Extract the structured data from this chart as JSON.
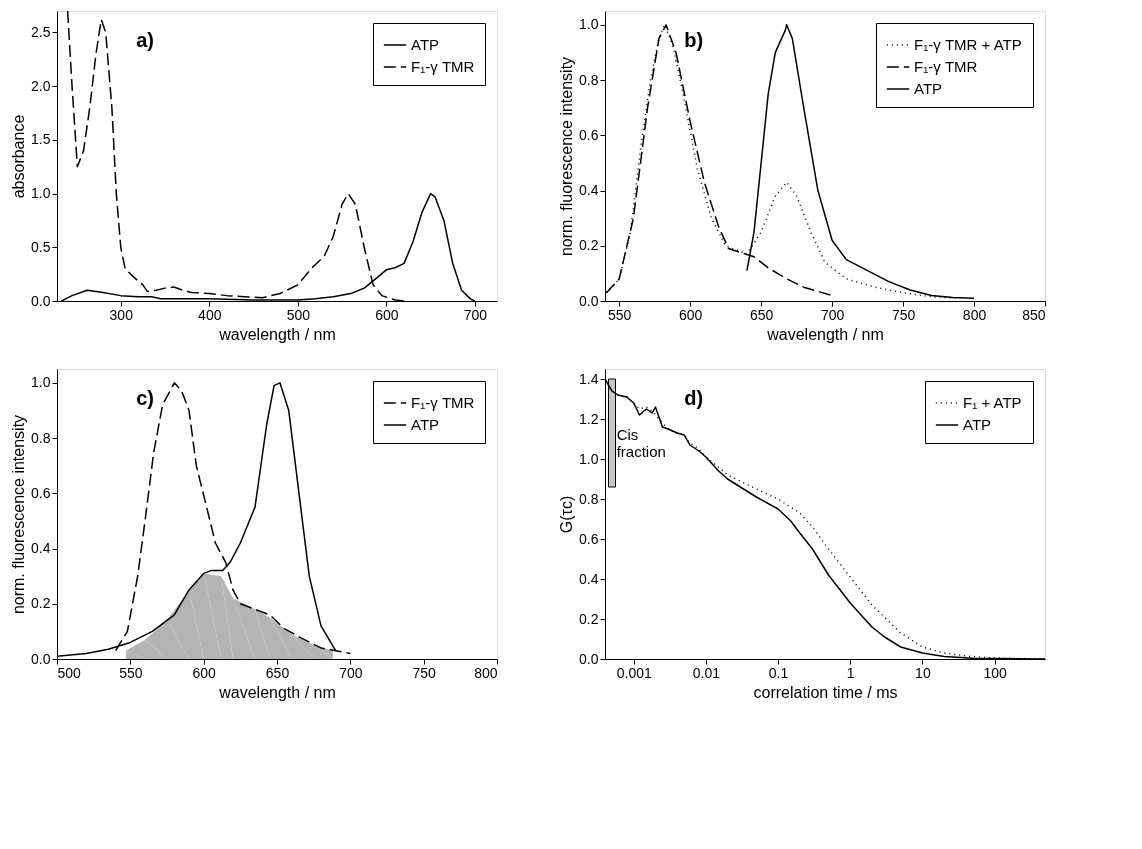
{
  "chart_data": [
    {
      "type": "line",
      "annotations": [
        "a)"
      ],
      "xlabel": "wavelength / nm",
      "ylabel": "absorbance",
      "xlim": [
        228,
        725
      ],
      "ylim": [
        0,
        2.7
      ],
      "xticks": [
        300,
        400,
        500,
        600,
        700
      ],
      "yticks": [
        {
          "value": 0,
          "label": "0.0"
        },
        {
          "value": 0.5,
          "label": "0.5"
        },
        {
          "value": 1,
          "label": "1.0"
        },
        {
          "value": 1.5,
          "label": "1.5"
        },
        {
          "value": 2,
          "label": "2.0"
        },
        {
          "value": 2.5,
          "label": "2.5"
        }
      ],
      "legend": "top right",
      "series": [
        {
          "name": "ATP",
          "color": "#000000",
          "line_style": "solid",
          "x": [
            233,
            245,
            262,
            280,
            300,
            320,
            335,
            345,
            400,
            450,
            500,
            520,
            540,
            560,
            575,
            590,
            600,
            610,
            620,
            630,
            640,
            650,
            655,
            665,
            675,
            685,
            695,
            700
          ],
          "values": [
            0,
            0.05,
            0.1,
            0.08,
            0.05,
            0.04,
            0.04,
            0.02,
            0.02,
            0.01,
            0.01,
            0.02,
            0.04,
            0.07,
            0.12,
            0.22,
            0.29,
            0.31,
            0.35,
            0.55,
            0.82,
            1.0,
            0.97,
            0.75,
            0.35,
            0.1,
            0.02,
            0
          ]
        },
        {
          "name": "F₁-γ TMR",
          "color": "#000000",
          "line_style": "dashed",
          "x": [
            240,
            245,
            251,
            258,
            265,
            272,
            278,
            283,
            290,
            295,
            300,
            305,
            315,
            325,
            330,
            340,
            350,
            360,
            370,
            380,
            400,
            420,
            440,
            460,
            480,
            500,
            515,
            530,
            540,
            550,
            557,
            565,
            575,
            585,
            595,
            610,
            620
          ],
          "values": [
            2.7,
            2.0,
            1.25,
            1.4,
            1.8,
            2.3,
            2.62,
            2.5,
            1.8,
            1.0,
            0.5,
            0.3,
            0.22,
            0.15,
            0.09,
            0.1,
            0.12,
            0.13,
            0.1,
            0.08,
            0.07,
            0.05,
            0.04,
            0.03,
            0.07,
            0.15,
            0.3,
            0.42,
            0.6,
            0.9,
            1.0,
            0.9,
            0.5,
            0.15,
            0.05,
            0.01,
            0
          ]
        }
      ]
    },
    {
      "type": "line",
      "annotations": [
        "b)"
      ],
      "xlabel": "wavelength / nm",
      "ylabel": "norm. fluorescence intensity",
      "xlim": [
        540,
        850
      ],
      "ylim": [
        0,
        1.05
      ],
      "xticks": [
        550,
        600,
        650,
        700,
        750,
        800,
        850
      ],
      "yticks": [
        {
          "value": 0,
          "label": "0.0"
        },
        {
          "value": 0.2,
          "label": "0.2"
        },
        {
          "value": 0.4,
          "label": "0.4"
        },
        {
          "value": 0.6,
          "label": "0.6"
        },
        {
          "value": 0.8,
          "label": "0.8"
        },
        {
          "value": 1,
          "label": "1.0"
        }
      ],
      "legend": "top right",
      "series": [
        {
          "name": "F₁-γ TMR + ATP",
          "color": "#000000",
          "line_style": "dotted",
          "x": [
            541,
            550,
            558,
            565,
            572,
            578,
            582,
            588,
            595,
            605,
            615,
            625,
            640,
            650,
            660,
            668,
            675,
            685,
            695,
            710,
            730,
            750,
            770,
            790
          ],
          "values": [
            0.03,
            0.08,
            0.25,
            0.55,
            0.8,
            0.95,
            1.0,
            0.92,
            0.75,
            0.48,
            0.3,
            0.2,
            0.17,
            0.25,
            0.38,
            0.43,
            0.38,
            0.25,
            0.14,
            0.08,
            0.05,
            0.03,
            0.015,
            0.01
          ]
        },
        {
          "name": "F₁-γ TMR",
          "color": "#000000",
          "line_style": "dashed",
          "x": [
            541,
            550,
            560,
            570,
            578,
            583,
            590,
            600,
            610,
            620,
            627,
            645,
            655,
            668,
            680,
            700
          ],
          "values": [
            0.03,
            0.08,
            0.3,
            0.7,
            0.95,
            1.0,
            0.9,
            0.65,
            0.43,
            0.27,
            0.19,
            0.16,
            0.12,
            0.08,
            0.05,
            0.02
          ]
        },
        {
          "name": "ATP",
          "color": "#000000",
          "line_style": "solid",
          "x": [
            640,
            645,
            650,
            655,
            660,
            667,
            668,
            672,
            680,
            690,
            700,
            710,
            725,
            740,
            755,
            770,
            785,
            800
          ],
          "values": [
            0.11,
            0.25,
            0.5,
            0.75,
            0.9,
            0.98,
            1.0,
            0.95,
            0.7,
            0.4,
            0.22,
            0.15,
            0.11,
            0.07,
            0.04,
            0.02,
            0.013,
            0.01
          ]
        }
      ]
    },
    {
      "type": "line",
      "annotations": [
        "c)"
      ],
      "xlabel": "wavelength / nm",
      "ylabel": "norm. fluorescence intensity",
      "xlim": [
        500,
        800
      ],
      "ylim": [
        0,
        1.05
      ],
      "xticks": [
        500,
        550,
        600,
        650,
        700,
        750,
        800
      ],
      "yticks": [
        {
          "value": 0,
          "label": "0.0"
        },
        {
          "value": 0.2,
          "label": "0.2"
        },
        {
          "value": 0.4,
          "label": "0.4"
        },
        {
          "value": 0.6,
          "label": "0.6"
        },
        {
          "value": 0.8,
          "label": "0.8"
        },
        {
          "value": 1,
          "label": "1.0"
        }
      ],
      "legend": "top right",
      "series": [
        {
          "type": "area",
          "color": "#b4b4b4",
          "x": [
            547,
            560,
            575,
            590,
            600,
            612,
            620,
            635,
            645,
            660,
            675,
            688
          ],
          "values": [
            0.03,
            0.07,
            0.14,
            0.25,
            0.31,
            0.3,
            0.22,
            0.18,
            0.15,
            0.09,
            0.05,
            0.03
          ]
        },
        {
          "name": "F₁-γ TMR",
          "color": "#000000",
          "line_style": "dashed",
          "x": [
            540,
            548,
            555,
            560,
            566,
            572,
            580,
            585,
            590,
            595,
            602,
            608,
            615,
            620,
            625,
            635,
            645,
            655,
            665,
            680,
            690,
            700
          ],
          "values": [
            0.03,
            0.1,
            0.3,
            0.5,
            0.75,
            0.92,
            1.0,
            0.97,
            0.9,
            0.7,
            0.55,
            0.42,
            0.35,
            0.25,
            0.2,
            0.18,
            0.16,
            0.11,
            0.08,
            0.04,
            0.03,
            0.02
          ]
        },
        {
          "name": "ATP",
          "color": "#000000",
          "line_style": "solid",
          "x": [
            500,
            520,
            535,
            550,
            565,
            580,
            590,
            600,
            605,
            613,
            618,
            625,
            635,
            643,
            648,
            652,
            658,
            665,
            672,
            680,
            690
          ],
          "values": [
            0.01,
            0.02,
            0.035,
            0.06,
            0.1,
            0.16,
            0.25,
            0.31,
            0.32,
            0.32,
            0.35,
            0.42,
            0.55,
            0.85,
            0.99,
            1.0,
            0.9,
            0.6,
            0.3,
            0.12,
            0.03
          ]
        }
      ]
    },
    {
      "type": "line",
      "annotations": [
        "d)",
        {
          "text": "Cis fraction",
          "x": 0.00058,
          "y": 1.12
        }
      ],
      "xlabel": "correlation time / ms",
      "ylabel": "G(τc)",
      "log": "x",
      "xlim": [
        0.0004,
        500
      ],
      "ylim": [
        0,
        1.45
      ],
      "xticks": [
        0.001,
        0.01,
        0.1,
        1,
        10,
        100
      ],
      "yticks": [
        {
          "value": 0,
          "label": "0.0"
        },
        {
          "value": 0.2,
          "label": "0.2"
        },
        {
          "value": 0.4,
          "label": "0.4"
        },
        {
          "value": 0.6,
          "label": "0.6"
        },
        {
          "value": 0.8,
          "label": "0.8"
        },
        {
          "value": 1,
          "label": "1.0"
        },
        {
          "value": 1.2,
          "label": "1.2"
        },
        {
          "value": 1.4,
          "label": "1.4"
        }
      ],
      "legend": "top right",
      "series": [
        {
          "type": "bar",
          "color": "#c8c8c8",
          "x": [
            0.0005
          ],
          "base": [
            0.86
          ],
          "values": [
            0.54
          ]
        },
        {
          "name": "F₁ + ATP",
          "color": "#000000",
          "line_style": "dotted",
          "x": [
            0.0004,
            0.0005,
            0.0006,
            0.0008,
            0.001,
            0.0012,
            0.0015,
            0.0018,
            0.002,
            0.0025,
            0.003,
            0.004,
            0.005,
            0.006,
            0.008,
            0.01,
            0.02,
            0.05,
            0.1,
            0.2,
            0.3,
            0.5,
            1,
            2,
            5,
            10,
            20,
            50,
            100,
            500
          ],
          "values": [
            1.4,
            1.34,
            1.32,
            1.31,
            1.28,
            1.25,
            1.26,
            1.24,
            1.22,
            1.18,
            1.15,
            1.13,
            1.12,
            1.08,
            1.05,
            1.01,
            0.92,
            0.85,
            0.8,
            0.73,
            0.66,
            0.55,
            0.41,
            0.27,
            0.13,
            0.06,
            0.03,
            0.012,
            0.005,
            0
          ]
        },
        {
          "name": "ATP",
          "color": "#000000",
          "line_style": "solid",
          "x": [
            0.0004,
            0.0005,
            0.0006,
            0.0008,
            0.001,
            0.0012,
            0.0015,
            0.0018,
            0.002,
            0.0025,
            0.003,
            0.004,
            0.005,
            0.006,
            0.008,
            0.01,
            0.015,
            0.02,
            0.03,
            0.05,
            0.1,
            0.15,
            0.2,
            0.3,
            0.5,
            1,
            2,
            3,
            5,
            10,
            20,
            50,
            100,
            500
          ],
          "values": [
            1.4,
            1.34,
            1.32,
            1.31,
            1.28,
            1.22,
            1.25,
            1.23,
            1.26,
            1.16,
            1.15,
            1.13,
            1.12,
            1.07,
            1.04,
            1.01,
            0.94,
            0.9,
            0.86,
            0.81,
            0.75,
            0.69,
            0.63,
            0.55,
            0.42,
            0.28,
            0.16,
            0.11,
            0.06,
            0.03,
            0.012,
            0.004,
            0.002,
            0
          ]
        }
      ]
    }
  ]
}
